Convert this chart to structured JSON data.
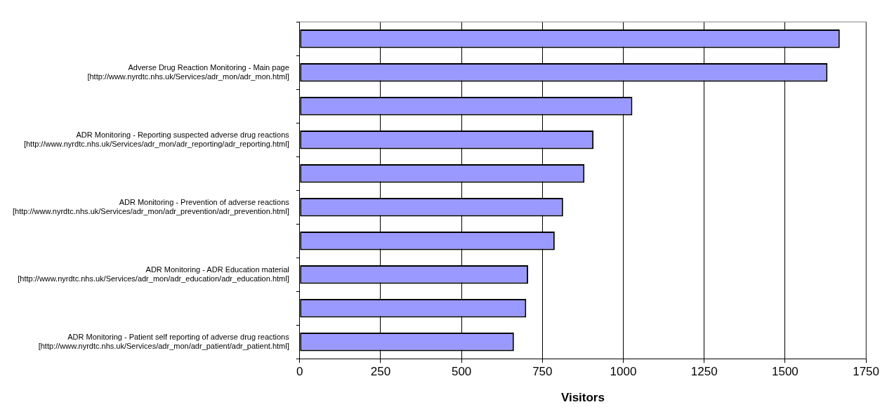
{
  "chart_data": {
    "type": "bar",
    "orientation": "horizontal",
    "categories": [
      null,
      "Adverse Drug Reaction Monitoring - Main page\n[http://www.nyrdtc.nhs.uk/Services/adr_mon/adr_mon.html]",
      null,
      "ADR Monitoring - Reporting suspected adverse drug reactions\n[http://www.nyrdtc.nhs.uk/Services/adr_mon/adr_reporting/adr_reporting.html]",
      null,
      "ADR Monitoring - Prevention of adverse reactions\n[http://www.nyrdtc.nhs.uk/Services/adr_mon/adr_prevention/adr_prevention.html]",
      null,
      "ADR Monitoring - ADR Education material\n[http://www.nyrdtc.nhs.uk/Services/adr_mon/adr_education/adr_education.html]",
      null,
      "ADR Monitoring - Patient self reporting of adverse drug reactions\n[http://www.nyrdtc.nhs.uk/Services/adr_mon/adr_patient/adr_patient.html]"
    ],
    "values": [
      1669,
      1631,
      1028,
      908,
      880,
      814,
      788,
      706,
      700,
      662
    ],
    "color": "#9999ff",
    "xlim": [
      0,
      1750
    ],
    "xticks": [
      0,
      250,
      500,
      750,
      1000,
      1250,
      1500,
      1750
    ],
    "xlabel": "Visitors",
    "grid": "x",
    "legend": false
  }
}
